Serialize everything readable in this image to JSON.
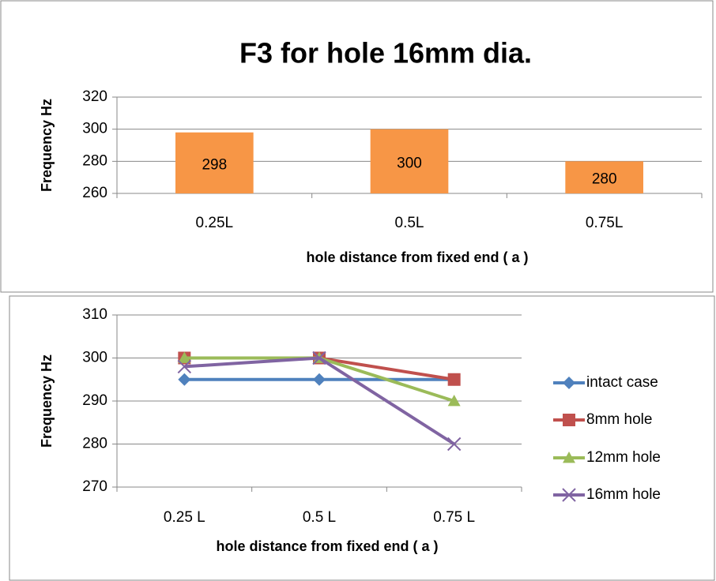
{
  "chart_data": [
    {
      "type": "bar",
      "title": "F3 for hole 16mm dia.",
      "y_label": "Frequency Hz",
      "x_label": "hole distance from fixed end   ( a )",
      "categories": [
        "0.25L",
        "0.5L",
        "0.75L"
      ],
      "values": [
        298,
        300,
        280
      ],
      "color": "#f79646",
      "ylim": [
        260,
        320
      ],
      "yticks": [
        260,
        280,
        300,
        320
      ],
      "grid": true
    },
    {
      "type": "line",
      "y_label": "Frequency Hz",
      "x_label": "hole distance from fixed end   ( a )",
      "categories": [
        "0.25 L",
        "0.5 L",
        "0.75 L"
      ],
      "series": [
        {
          "name": "intact case",
          "color": "#4f81bd",
          "marker": "diamond",
          "values": [
            295,
            295,
            295
          ]
        },
        {
          "name": "8mm hole",
          "color": "#c0504d",
          "marker": "square",
          "values": [
            300,
            300,
            295
          ]
        },
        {
          "name": "12mm hole",
          "color": "#9bbb59",
          "marker": "triangle",
          "values": [
            300,
            300,
            290
          ]
        },
        {
          "name": "16mm hole",
          "color": "#8064a2",
          "marker": "x",
          "values": [
            298,
            300,
            280
          ]
        }
      ],
      "ylim": [
        270,
        310
      ],
      "yticks": [
        270,
        280,
        290,
        300,
        310
      ],
      "grid": true,
      "legend": "right"
    }
  ]
}
